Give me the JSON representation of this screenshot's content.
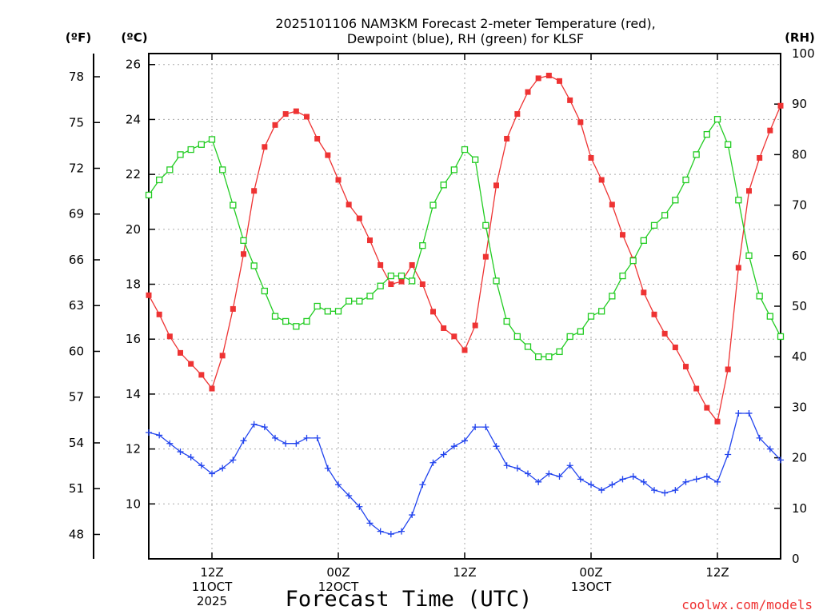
{
  "chart_data": {
    "type": "line",
    "title_line1": "2025101106 NAM3KM Forecast 2-meter Temperature (red),",
    "title_line2": "Dewpoint (blue), RH (green) for KLSF",
    "xlabel": "Forecast Time (UTC)",
    "credit": "coolwx.com/models",
    "unit_labels": {
      "fahrenheit": "(ºF)",
      "celsius": "(ºC)",
      "rh": "(RH)"
    },
    "x_ticks": [
      {
        "hour": 6,
        "lines": [
          "12Z",
          "11OCT",
          "2025"
        ]
      },
      {
        "hour": 18,
        "lines": [
          "00Z",
          "12OCT"
        ]
      },
      {
        "hour": 30,
        "lines": [
          "12Z"
        ]
      },
      {
        "hour": 42,
        "lines": [
          "00Z",
          "13OCT"
        ]
      },
      {
        "hour": 54,
        "lines": [
          "12Z"
        ]
      }
    ],
    "x_range": [
      0,
      60
    ],
    "ylim_celsius": [
      8,
      26.4
    ],
    "yticks_celsius": [
      "10",
      "12",
      "14",
      "16",
      "18",
      "20",
      "22",
      "24",
      "26"
    ],
    "yticks_fahrenheit": [
      "48",
      "51",
      "54",
      "57",
      "60",
      "63",
      "66",
      "69",
      "72",
      "75",
      "78"
    ],
    "ylim_rh": [
      0,
      100
    ],
    "yticks_rh": [
      "0",
      "10",
      "20",
      "30",
      "40",
      "50",
      "60",
      "70",
      "80",
      "90",
      "100"
    ],
    "colors": {
      "temperature": "#ee3333",
      "dewpoint": "#2244ee",
      "rh": "#22cc22",
      "grid": "#aaaaaa"
    },
    "series": [
      {
        "name": "Temperature (°C)",
        "axis": "celsius",
        "marker": "filled-square",
        "values": [
          17.6,
          16.9,
          16.1,
          15.5,
          15.1,
          14.7,
          14.2,
          15.4,
          17.1,
          19.1,
          21.4,
          23.0,
          23.8,
          24.2,
          24.3,
          24.1,
          23.3,
          22.7,
          21.8,
          20.9,
          20.4,
          19.6,
          18.7,
          18.0,
          18.1,
          18.7,
          18.0,
          17.0,
          16.4,
          16.1,
          15.6,
          16.5,
          19.0,
          21.6,
          23.3,
          24.2,
          25.0,
          25.5,
          25.6,
          25.4,
          24.7,
          23.9,
          22.6,
          21.8,
          20.9,
          19.8,
          18.9,
          17.7,
          16.9,
          16.2,
          15.7,
          15.0,
          14.2,
          13.5,
          13.0,
          14.9,
          18.6,
          21.4,
          22.6,
          23.6,
          24.5
        ]
      },
      {
        "name": "Dewpoint (°C)",
        "axis": "celsius",
        "marker": "plus",
        "values": [
          12.6,
          12.5,
          12.2,
          11.9,
          11.7,
          11.4,
          11.1,
          11.3,
          11.6,
          12.3,
          12.9,
          12.8,
          12.4,
          12.2,
          12.2,
          12.4,
          12.4,
          11.3,
          10.7,
          10.3,
          9.9,
          9.3,
          9.0,
          8.9,
          9.0,
          9.6,
          10.7,
          11.5,
          11.8,
          12.1,
          12.3,
          12.8,
          12.8,
          12.1,
          11.4,
          11.3,
          11.1,
          10.8,
          11.1,
          11.0,
          11.4,
          10.9,
          10.7,
          10.5,
          10.7,
          10.9,
          11.0,
          10.8,
          10.5,
          10.4,
          10.5,
          10.8,
          10.9,
          11.0,
          10.8,
          11.8,
          13.3,
          13.3,
          12.4,
          12.0,
          11.6
        ]
      },
      {
        "name": "RH (%)",
        "axis": "rh",
        "marker": "open-square",
        "values": [
          72,
          75,
          77,
          80,
          81,
          82,
          83,
          77,
          70,
          63,
          58,
          53,
          48,
          47,
          46,
          47,
          50,
          49,
          49,
          51,
          51,
          52,
          54,
          56,
          56,
          55,
          62,
          70,
          74,
          77,
          81,
          79,
          66,
          55,
          47,
          44,
          42,
          40,
          40,
          41,
          44,
          45,
          48,
          49,
          52,
          56,
          59,
          63,
          66,
          68,
          71,
          75,
          80,
          84,
          87,
          82,
          71,
          60,
          52,
          48,
          44
        ]
      }
    ]
  }
}
